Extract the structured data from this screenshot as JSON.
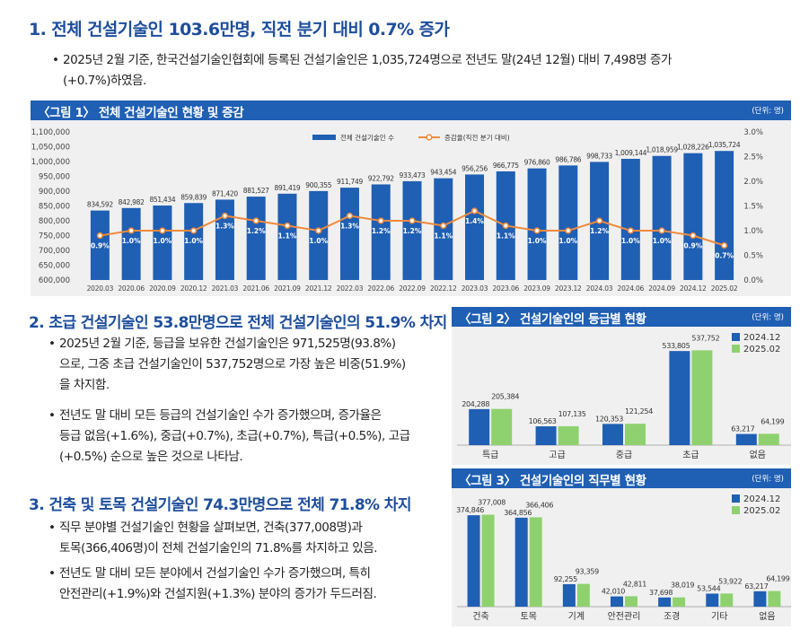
{
  "section1": {
    "heading": "1. 전체 건설기술인 103.6만명, 직전 분기 대비 0.7% 증가",
    "bullets": [
      "2025년 2월 기준, 한국건설기술인협회에 등록된 건설기술인은 1,035,724명으로 전년도 말(24년 12월) 대비 7,498명 증가",
      "(+0.7%)하였음."
    ]
  },
  "figure1": {
    "title": "〈그림 1〉 전체 건설기술인 현황 및 증감",
    "unit": "(단위: 명)"
  },
  "section2": {
    "heading": "2. 초급 건설기술인 53.8만명으로 전체 건설기술인의 51.9% 차지",
    "bullet1": [
      "2025년 2월 기준, 등급을 보유한 건설기술인은 971,525명(93.8%)",
      "으로, 그중 초급 건설기술인이 537,752명으로 가장 높은 비중(51.9%)",
      "을 차지함."
    ],
    "bullet2": [
      "전년도 말 대비 모든 등급의 건설기술인 수가 증가했으며, 증가율은",
      "등급 없음(+1.6%), 중급(+0.7%), 초급(+0.7%), 특급(+0.5%), 고급",
      "(+0.5%) 순으로 높은 것으로 나타남."
    ]
  },
  "figure2": {
    "title": "〈그림 2〉 건설기술인의 등급별 현황",
    "unit": "(단위: 명)"
  },
  "section3": {
    "heading": "3. 건축 및 토목 건설기술인 74.3만명으로 전체 71.8% 차지",
    "bullet1": [
      "직무 분야별 건설기술인 현황을 살펴보면, 건축(377,008명)과",
      "토목(366,406명)이 전체 건설기술인의 71.8%를 차지하고 있음."
    ],
    "bullet2": [
      "전년도 말 대비 모든 분야에서 건설기술인 수가 증가했으며, 특히",
      "안전관리(+1.9%)와 건설지원(+1.3%) 분야의 증가가 두드러짐."
    ]
  },
  "figure3": {
    "title": "〈그림 3〉 건설기술인의 직무별 현황",
    "unit": "(단위: 명)"
  },
  "chart_data": [
    {
      "type": "bar",
      "subtype": "bar-line-combo",
      "categories": [
        "2020.03",
        "2020.06",
        "2020.09",
        "2020.12",
        "2021.03",
        "2021.06",
        "2021.09",
        "2021.12",
        "2022.03",
        "2022.06",
        "2022.09",
        "2022.12",
        "2023.03",
        "2023.06",
        "2023.09",
        "2023.12",
        "2024.03",
        "2024.06",
        "2024.09",
        "2024.12",
        "2025.02"
      ],
      "series": [
        {
          "name": "전체 건설기술인 수",
          "axis": "left",
          "color": "#1f5fb4",
          "values": [
            834592,
            842982,
            851434,
            859839,
            871420,
            881527,
            891419,
            900355,
            911749,
            922792,
            933473,
            943454,
            956256,
            966775,
            976860,
            986786,
            998733,
            1009144,
            1018959,
            1028226,
            1035724
          ],
          "labels": [
            "834,592",
            "842,982",
            "851,434",
            "859,839",
            "871,420",
            "881,527",
            "891,419",
            "900,355",
            "911,749",
            "922,792",
            "933,473",
            "943,454",
            "956,256",
            "966,775",
            "976,860",
            "986,786",
            "998,733",
            "1,009,144",
            "1,018,959",
            "1,028,226",
            "1,035,724"
          ]
        },
        {
          "name": "증감율(직전 분기 대비)",
          "axis": "right",
          "type": "line",
          "color": "#f08a3c",
          "values": [
            0.9,
            1.0,
            1.0,
            1.0,
            1.3,
            1.2,
            1.1,
            1.0,
            1.3,
            1.2,
            1.2,
            1.1,
            1.4,
            1.1,
            1.0,
            1.0,
            1.2,
            1.0,
            1.0,
            0.9,
            0.7
          ],
          "labels": [
            "0.9%",
            "1.0%",
            "1.0%",
            "1.0%",
            "1.3%",
            "1.2%",
            "1.1%",
            "1.0%",
            "1.3%",
            "1.2%",
            "1.2%",
            "1.1%",
            "1.4%",
            "1.1%",
            "1.0%",
            "1.0%",
            "1.2%",
            "1.0%",
            "1.0%",
            "0.9%",
            "0.7%"
          ]
        }
      ],
      "ylim": [
        600000,
        1100000
      ],
      "ytick_labels": [
        "600,000",
        "650,000",
        "700,000",
        "750,000",
        "800,000",
        "850,000",
        "900,000",
        "950,000",
        "1,000,000",
        "1,050,000",
        "1,100,000"
      ],
      "y2lim": [
        0,
        3.0
      ],
      "y2tick_labels": [
        "0.0%",
        "0.5%",
        "1.0%",
        "1.5%",
        "2.0%",
        "2.5%",
        "3.0%"
      ],
      "legend": "top-center",
      "grid": false
    },
    {
      "type": "bar",
      "categories": [
        "특급",
        "고급",
        "중급",
        "초급",
        "없음"
      ],
      "series": [
        {
          "name": "2024.12",
          "color": "#1f5fb4",
          "values": [
            204288,
            106563,
            120353,
            533805,
            63217
          ],
          "labels": [
            "204,288",
            "106,563",
            "120,353",
            "533,805",
            "63,217"
          ]
        },
        {
          "name": "2025.02",
          "color": "#8fd16f",
          "values": [
            205384,
            107135,
            121254,
            537752,
            64199
          ],
          "labels": [
            "205,384",
            "107,135",
            "121,254",
            "537,752",
            "64,199"
          ]
        }
      ],
      "ylim": [
        0,
        560000
      ],
      "legend": "top-right"
    },
    {
      "type": "bar",
      "categories": [
        "건축",
        "토목",
        "기계",
        "안전관리",
        "조경",
        "기타",
        "없음"
      ],
      "series": [
        {
          "name": "2024.12",
          "color": "#1f5fb4",
          "values": [
            374846,
            364856,
            92255,
            42010,
            37698,
            53544,
            63217
          ],
          "labels": [
            "374,846",
            "364,856",
            "92,255",
            "42,010",
            "37,698",
            "53,544",
            "63,217"
          ]
        },
        {
          "name": "2025.02",
          "color": "#8fd16f",
          "values": [
            377008,
            366406,
            93359,
            42811,
            38019,
            53922,
            64199
          ],
          "labels": [
            "377,008",
            "366,406",
            "93,359",
            "42,811",
            "38,019",
            "53,922",
            "64,199"
          ]
        }
      ],
      "ylim": [
        0,
        390000
      ],
      "legend": "top-right"
    }
  ]
}
